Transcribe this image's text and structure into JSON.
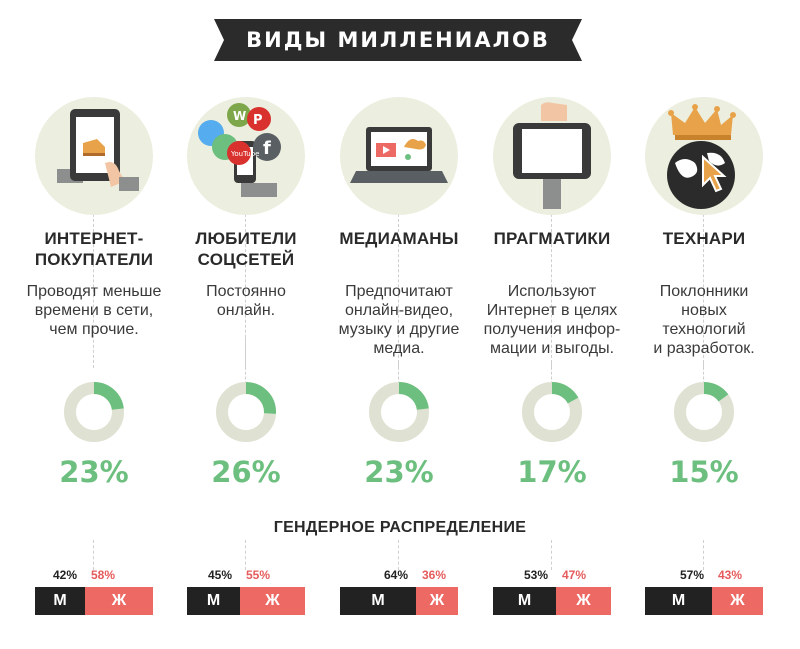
{
  "title": "ВИДЫ МИЛЛЕНИАЛОВ",
  "gender_title": "ГЕНДЕРНОЕ РАСПРЕДЕЛЕНИЕ",
  "colors": {
    "green": "#6cbf7e",
    "red": "#ed6a64",
    "dark": "#2b2b2b",
    "circle_bg": "#ecefdf",
    "donut_bg": "#dfe2d2"
  },
  "columns": [
    {
      "title": "ИНТЕРНЕТ-\nПОКУПАТЕЛИ",
      "desc": "Проводят меньше\nвремени в сети,\nчем прочие.",
      "percent": 23,
      "percent_label": "23%",
      "male": 42,
      "female": 58,
      "male_label": "42%",
      "female_label": "58%",
      "m": "М",
      "f": "Ж",
      "icon": "tablet-shopping-icon"
    },
    {
      "title": "ЛЮБИТЕЛИ\nСОЦСЕТЕЙ",
      "desc": "Постоянно\nонлайн.",
      "percent": 26,
      "percent_label": "26%",
      "male": 45,
      "female": 55,
      "male_label": "45%",
      "female_label": "55%",
      "m": "М",
      "f": "Ж",
      "icon": "social-networks-icon"
    },
    {
      "title": "МЕДИАМАНЫ",
      "desc": "Предпочитают\nонлайн-видео,\nмузыку и другие\nмедиа.",
      "percent": 23,
      "percent_label": "23%",
      "male": 64,
      "female": 36,
      "male_label": "64%",
      "female_label": "36%",
      "m": "М",
      "f": "Ж",
      "icon": "laptop-media-icon"
    },
    {
      "title": "ПРАГМАТИКИ",
      "desc": "Используют\nИнтернет в целях\nполучения инфор-\nмации и выгоды.",
      "percent": 17,
      "percent_label": "17%",
      "male": 53,
      "female": 47,
      "male_label": "53%",
      "female_label": "47%",
      "m": "М",
      "f": "Ж",
      "icon": "tablet-hand-icon"
    },
    {
      "title": "ТЕХНАРИ",
      "desc": "Поклонники\nновых\nтехнологий\nи разработок.",
      "percent": 15,
      "percent_label": "15%",
      "male": 57,
      "female": 43,
      "male_label": "57%",
      "female_label": "43%",
      "m": "М",
      "f": "Ж",
      "icon": "globe-crown-icon"
    }
  ]
}
